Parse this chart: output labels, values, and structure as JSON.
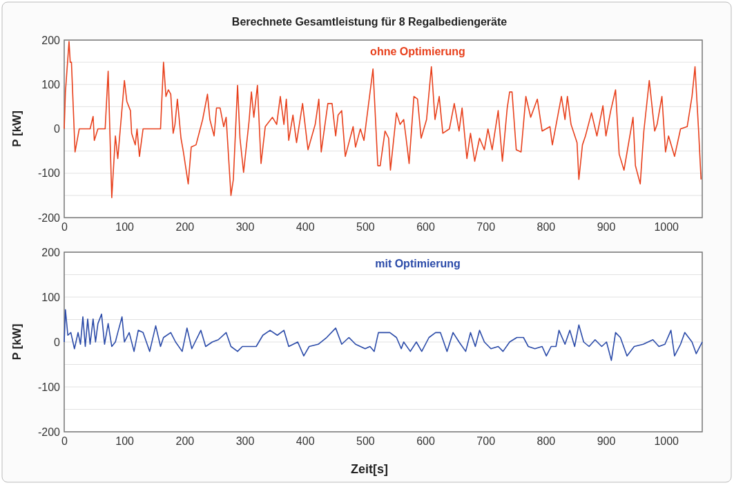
{
  "chart_data": [
    {
      "type": "line",
      "title": "Berechnete Gesamtleistung für 8 Regalbediengeräte",
      "ylabel": "P [kW]",
      "xlim": [
        0,
        1060
      ],
      "xticks": [
        0,
        100,
        200,
        300,
        400,
        500,
        600,
        700,
        800,
        900,
        1000
      ],
      "ylim": [
        -200,
        200
      ],
      "yticks": [
        -200,
        {
          "value": -150,
          "label": null
        },
        -100,
        {
          "value": -50,
          "label": null
        },
        0,
        {
          "value": 50,
          "label": null
        },
        100,
        {
          "value": 150,
          "label": null
        },
        200
      ],
      "grid": "y",
      "marker": "none",
      "line_style": "solid",
      "series": [
        {
          "name": "ohne Optimierung",
          "color": "#e8401c",
          "x": [
            0,
            2,
            8,
            10,
            12,
            18,
            25,
            43,
            48,
            50,
            56,
            68,
            73,
            79,
            85,
            89,
            100,
            104,
            110,
            112,
            118,
            121,
            125,
            131,
            160,
            165,
            169,
            173,
            177,
            181,
            184,
            188,
            194,
            198,
            206,
            211,
            219,
            230,
            238,
            242,
            249,
            253,
            259,
            265,
            269,
            277,
            281,
            288,
            292,
            298,
            307,
            311,
            315,
            321,
            327,
            334,
            346,
            353,
            359,
            365,
            369,
            373,
            380,
            386,
            396,
            405,
            417,
            423,
            427,
            438,
            445,
            451,
            455,
            461,
            467,
            480,
            484,
            492,
            498,
            513,
            521,
            525,
            533,
            539,
            542,
            552,
            558,
            564,
            568,
            573,
            581,
            587,
            593,
            602,
            610,
            616,
            623,
            629,
            640,
            648,
            656,
            658,
            661,
            669,
            675,
            682,
            690,
            698,
            704,
            711,
            721,
            728,
            736,
            740,
            744,
            751,
            759,
            767,
            775,
            786,
            794,
            807,
            811,
            826,
            832,
            836,
            842,
            852,
            855,
            861,
            866,
            876,
            885,
            895,
            900,
            908,
            916,
            922,
            930,
            945,
            949,
            957,
            963,
            972,
            981,
            985,
            993,
            999,
            1004,
            1014,
            1024,
            1035,
            1043,
            1048,
            1054,
            1058
          ],
          "values": [
            0,
            83,
            197,
            150,
            150,
            -52,
            0,
            0,
            28,
            -26,
            0,
            0,
            130,
            -155,
            -16,
            -67,
            109,
            62,
            41,
            -10,
            -36,
            0,
            -62,
            0,
            0,
            150,
            73,
            88,
            78,
            -10,
            10,
            67,
            -21,
            -52,
            -124,
            -41,
            -36,
            21,
            78,
            21,
            -16,
            47,
            47,
            5,
            26,
            -150,
            -114,
            98,
            -21,
            -98,
            16,
            83,
            26,
            98,
            -78,
            5,
            26,
            10,
            73,
            10,
            67,
            -26,
            31,
            -31,
            57,
            -47,
            10,
            67,
            -52,
            57,
            57,
            -16,
            31,
            41,
            -62,
            5,
            -41,
            0,
            -26,
            135,
            -83,
            -83,
            -5,
            -21,
            -93,
            36,
            10,
            21,
            -21,
            -78,
            73,
            67,
            -21,
            21,
            140,
            21,
            73,
            -10,
            0,
            57,
            -5,
            16,
            47,
            -67,
            -10,
            -73,
            -21,
            -47,
            0,
            -47,
            41,
            -73,
            47,
            83,
            83,
            -47,
            -52,
            73,
            26,
            67,
            -5,
            5,
            -36,
            73,
            21,
            73,
            10,
            -31,
            -114,
            -36,
            -16,
            36,
            -16,
            52,
            -16,
            41,
            88,
            -57,
            -93,
            26,
            -83,
            -124,
            -5,
            109,
            -5,
            10,
            73,
            -52,
            -16,
            -62,
            0,
            5,
            73,
            140,
            -5,
            -114
          ]
        }
      ]
    },
    {
      "type": "line",
      "xlabel": "Zeit[s]",
      "ylabel": "P [kW]",
      "xlim": [
        0,
        1060
      ],
      "xticks": [
        0,
        100,
        200,
        300,
        400,
        500,
        600,
        700,
        800,
        900,
        1000
      ],
      "ylim": [
        -200,
        200
      ],
      "yticks": [
        -200,
        {
          "value": -150,
          "label": null
        },
        -100,
        {
          "value": -50,
          "label": null
        },
        0,
        {
          "value": 50,
          "label": null
        },
        100,
        {
          "value": 150,
          "label": null
        },
        200
      ],
      "grid": "y",
      "marker": "none",
      "line_style": "solid",
      "series": [
        {
          "name": "mit Optimierung",
          "color": "#2a4aa8",
          "x": [
            0,
            2,
            6,
            11,
            17,
            23,
            27,
            31,
            35,
            39,
            43,
            48,
            52,
            56,
            62,
            67,
            73,
            79,
            85,
            89,
            96,
            100,
            108,
            116,
            123,
            131,
            142,
            152,
            160,
            165,
            177,
            185,
            196,
            204,
            212,
            227,
            235,
            246,
            256,
            269,
            277,
            288,
            296,
            319,
            330,
            342,
            354,
            365,
            373,
            388,
            398,
            407,
            422,
            436,
            451,
            461,
            473,
            484,
            500,
            508,
            515,
            522,
            529,
            541,
            552,
            560,
            564,
            575,
            585,
            594,
            606,
            617,
            625,
            636,
            646,
            656,
            667,
            675,
            683,
            690,
            698,
            709,
            721,
            729,
            740,
            752,
            763,
            771,
            782,
            794,
            801,
            809,
            817,
            822,
            832,
            840,
            848,
            855,
            863,
            872,
            882,
            893,
            901,
            909,
            916,
            924,
            935,
            947,
            962,
            978,
            988,
            998,
            1008,
            1014,
            1024,
            1031,
            1043,
            1050,
            1060
          ],
          "values": [
            0,
            72,
            15,
            21,
            -15,
            21,
            -5,
            56,
            -10,
            51,
            -5,
            51,
            0,
            41,
            62,
            -5,
            41,
            -10,
            0,
            21,
            56,
            0,
            21,
            -21,
            26,
            21,
            -21,
            36,
            -10,
            10,
            21,
            0,
            -21,
            31,
            -15,
            26,
            -10,
            0,
            5,
            21,
            -10,
            -21,
            -10,
            -10,
            15,
            26,
            15,
            26,
            -10,
            0,
            -31,
            -10,
            -5,
            10,
            31,
            -5,
            10,
            -5,
            -15,
            -10,
            -21,
            21,
            21,
            21,
            10,
            -15,
            0,
            -21,
            0,
            -21,
            10,
            21,
            21,
            -21,
            21,
            0,
            -21,
            21,
            -10,
            26,
            0,
            -15,
            -10,
            -21,
            0,
            10,
            10,
            -10,
            -15,
            -10,
            -31,
            -10,
            -10,
            26,
            -5,
            26,
            -10,
            38,
            0,
            -10,
            5,
            -10,
            0,
            -41,
            21,
            10,
            -31,
            -10,
            -5,
            5,
            -10,
            -5,
            26,
            -31,
            -5,
            21,
            0,
            -26,
            0
          ]
        }
      ]
    }
  ]
}
